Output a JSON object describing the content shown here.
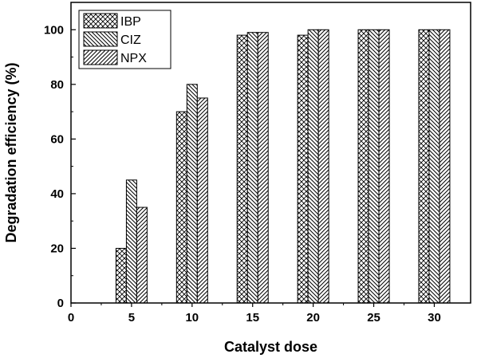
{
  "chart_data": {
    "type": "bar",
    "xlabel": "Catalyst dose",
    "ylabel": "Degradation efficiency (%)",
    "xlim": [
      0,
      33
    ],
    "ylim": [
      0,
      110
    ],
    "x_ticks": [
      0,
      5,
      10,
      15,
      20,
      25,
      30
    ],
    "y_ticks": [
      0,
      20,
      40,
      60,
      80,
      100
    ],
    "categories": [
      5,
      10,
      15,
      20,
      25,
      30
    ],
    "series": [
      {
        "name": "IBP",
        "values": [
          20,
          70,
          98,
          98,
          100,
          100
        ],
        "pattern": "crosshatch"
      },
      {
        "name": "CIZ",
        "values": [
          45,
          80,
          99,
          100,
          100,
          100
        ],
        "pattern": "backslash"
      },
      {
        "name": "NPX",
        "values": [
          35,
          75,
          99,
          100,
          100,
          100
        ],
        "pattern": "slash"
      }
    ],
    "legend_position": "top-left",
    "grid": false,
    "bar_fill": "#ffffff",
    "bar_stroke": "#000000"
  }
}
